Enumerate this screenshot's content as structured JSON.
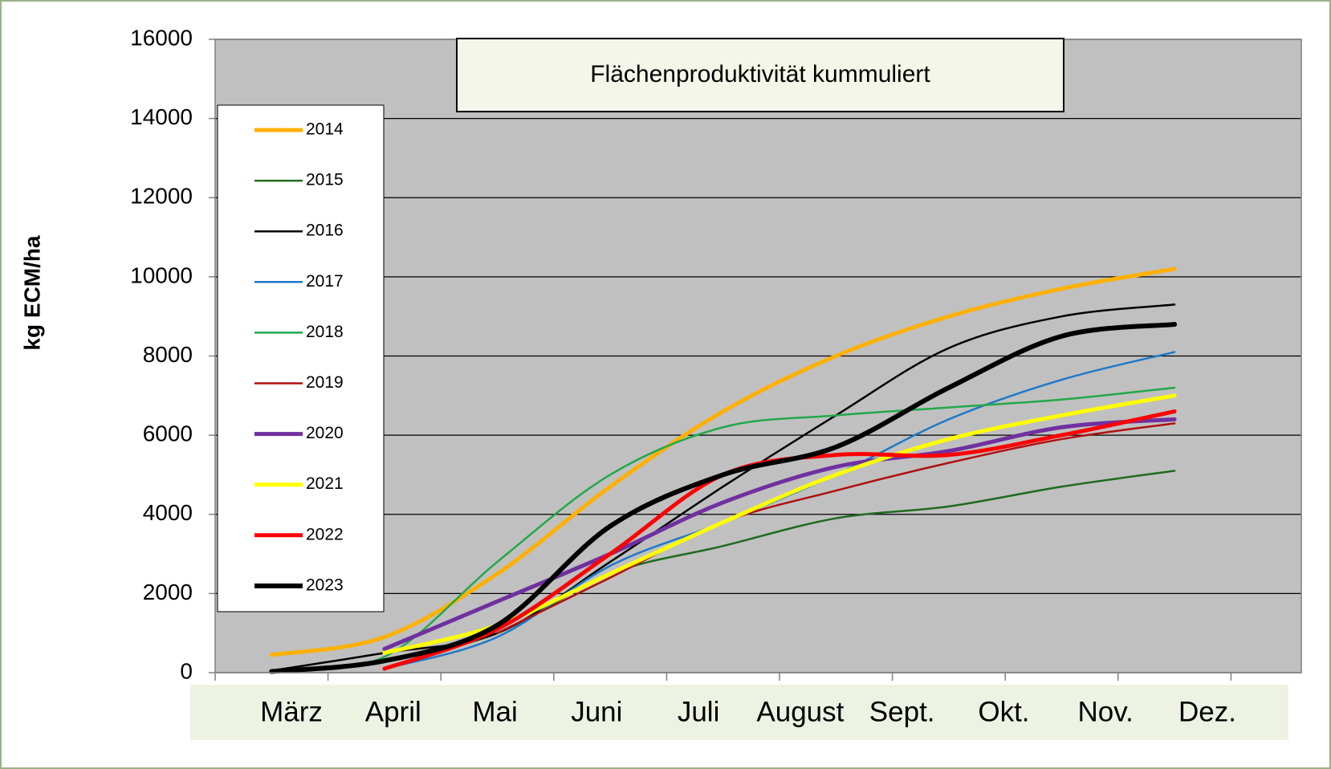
{
  "chart_data": {
    "type": "line",
    "title": "Flächenproduktivität  kummuliert",
    "y_label": "kg ECM/ha",
    "categories": [
      "März",
      "April",
      "Mai",
      "Juni",
      "Juli",
      "August",
      "Sept.",
      "Okt.",
      "Nov.",
      "Dez."
    ],
    "ylim": [
      0,
      16000
    ],
    "yticks": [
      0,
      2000,
      4000,
      6000,
      8000,
      10000,
      12000,
      14000,
      16000
    ],
    "grid": true,
    "legend": "left",
    "series": [
      {
        "name": "2014",
        "color": "#ffb000",
        "width": 5,
        "values": [
          450,
          900,
          2500,
          4700,
          6600,
          8000,
          9000,
          9700,
          10200,
          null
        ]
      },
      {
        "name": "2015",
        "color": "#1f6b1f",
        "width": 2.5,
        "values": [
          50,
          300,
          1000,
          2500,
          3200,
          3900,
          4200,
          4700,
          5100,
          null
        ]
      },
      {
        "name": "2016",
        "color": "#000000",
        "width": 2.5,
        "values": [
          50,
          500,
          1000,
          2800,
          4700,
          6500,
          8200,
          9000,
          9300,
          null
        ]
      },
      {
        "name": "2017",
        "color": "#1f78c8",
        "width": 2.5,
        "values": [
          null,
          100,
          900,
          2700,
          3800,
          5000,
          6400,
          7400,
          8100,
          null
        ]
      },
      {
        "name": "2018",
        "color": "#22a84a",
        "width": 2.5,
        "values": [
          50,
          400,
          2800,
          5000,
          6200,
          6500,
          6700,
          6900,
          7200,
          null
        ]
      },
      {
        "name": "2019",
        "color": "#b01010",
        "width": 2.5,
        "values": [
          null,
          null,
          1000,
          2400,
          3800,
          4600,
          5300,
          5900,
          6300,
          null
        ]
      },
      {
        "name": "2020",
        "color": "#7030a0",
        "width": 5,
        "values": [
          null,
          600,
          1800,
          3000,
          4300,
          5200,
          5600,
          6200,
          6400,
          null
        ]
      },
      {
        "name": "2021",
        "color": "#ffff00",
        "width": 5,
        "values": [
          null,
          500,
          1200,
          2500,
          3800,
          5000,
          5900,
          6500,
          7000,
          null
        ]
      },
      {
        "name": "2022",
        "color": "#ff0000",
        "width": 5,
        "values": [
          null,
          100,
          1100,
          3000,
          5000,
          5500,
          5500,
          6000,
          6600,
          null
        ]
      },
      {
        "name": "2023",
        "color": "#000000",
        "width": 6,
        "values": [
          30,
          300,
          1200,
          3700,
          5000,
          5700,
          7200,
          8500,
          8800,
          null
        ]
      }
    ]
  }
}
